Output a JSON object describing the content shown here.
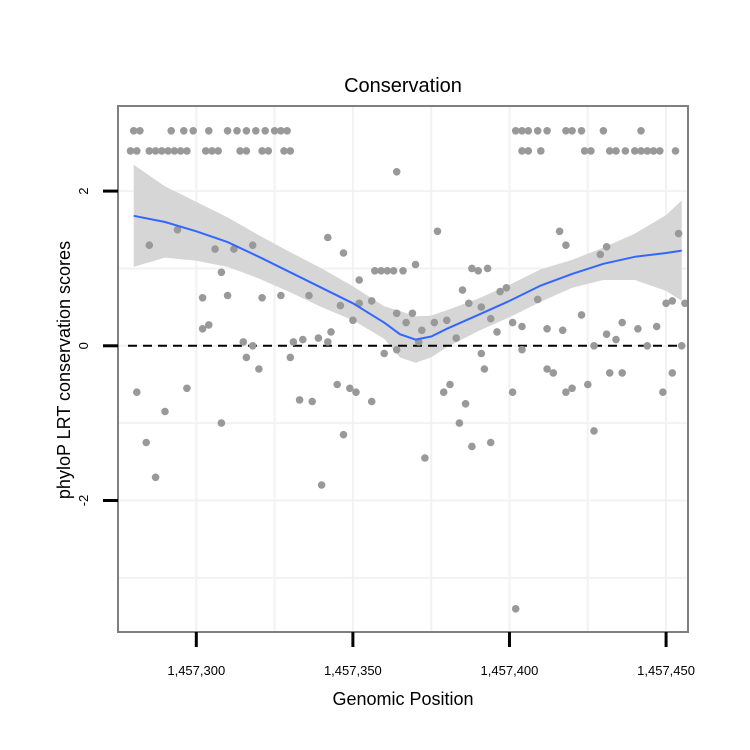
{
  "chart_data": {
    "type": "scatter",
    "title": "Conservation",
    "xlabel": "Genomic Position",
    "ylabel": "phyloP LRT conservation scores",
    "xlim": [
      1457275,
      1457457
    ],
    "ylim": [
      -3.7,
      3.1
    ],
    "x_ticks": [
      1457300,
      1457350,
      1457400,
      1457450
    ],
    "x_tick_labels": [
      "1,457,300",
      "1,457,350",
      "1,457,400",
      "1,457,450"
    ],
    "y_ticks": [
      -2,
      0,
      2
    ],
    "y_tick_labels": [
      "-2",
      "0",
      "2"
    ],
    "reference_line": 0,
    "colors": {
      "points": "#999999",
      "smooth": "#3366ff",
      "ribbon": "#d6d6d6",
      "panel_border": "#7f7f7f",
      "grid": "#f2f2f2"
    },
    "points": [
      [
        1457280,
        2.78
      ],
      [
        1457282,
        2.78
      ],
      [
        1457292,
        2.78
      ],
      [
        1457296,
        2.78
      ],
      [
        1457299,
        2.78
      ],
      [
        1457304,
        2.78
      ],
      [
        1457310,
        2.78
      ],
      [
        1457313,
        2.78
      ],
      [
        1457316,
        2.78
      ],
      [
        1457319,
        2.78
      ],
      [
        1457322,
        2.78
      ],
      [
        1457325,
        2.78
      ],
      [
        1457327,
        2.78
      ],
      [
        1457329,
        2.78
      ],
      [
        1457402,
        2.78
      ],
      [
        1457404,
        2.78
      ],
      [
        1457406,
        2.78
      ],
      [
        1457409,
        2.78
      ],
      [
        1457412,
        2.78
      ],
      [
        1457418,
        2.78
      ],
      [
        1457420,
        2.78
      ],
      [
        1457423,
        2.78
      ],
      [
        1457430,
        2.78
      ],
      [
        1457442,
        2.78
      ],
      [
        1457279,
        2.52
      ],
      [
        1457281,
        2.52
      ],
      [
        1457285,
        2.52
      ],
      [
        1457287,
        2.52
      ],
      [
        1457289,
        2.52
      ],
      [
        1457291,
        2.52
      ],
      [
        1457293,
        2.52
      ],
      [
        1457295,
        2.52
      ],
      [
        1457297,
        2.52
      ],
      [
        1457303,
        2.52
      ],
      [
        1457305,
        2.52
      ],
      [
        1457307,
        2.52
      ],
      [
        1457314,
        2.52
      ],
      [
        1457316,
        2.52
      ],
      [
        1457321,
        2.52
      ],
      [
        1457323,
        2.52
      ],
      [
        1457328,
        2.52
      ],
      [
        1457330,
        2.52
      ],
      [
        1457404,
        2.52
      ],
      [
        1457406,
        2.52
      ],
      [
        1457410,
        2.52
      ],
      [
        1457424,
        2.52
      ],
      [
        1457426,
        2.52
      ],
      [
        1457432,
        2.52
      ],
      [
        1457434,
        2.52
      ],
      [
        1457437,
        2.52
      ],
      [
        1457440,
        2.52
      ],
      [
        1457442,
        2.52
      ],
      [
        1457444,
        2.52
      ],
      [
        1457446,
        2.52
      ],
      [
        1457448,
        2.52
      ],
      [
        1457453,
        2.52
      ],
      [
        1457364,
        2.25
      ],
      [
        1457285,
        1.3
      ],
      [
        1457294,
        1.5
      ],
      [
        1457306,
        1.25
      ],
      [
        1457312,
        1.25
      ],
      [
        1457318,
        1.3
      ],
      [
        1457342,
        1.4
      ],
      [
        1457347,
        1.2
      ],
      [
        1457352,
        0.85
      ],
      [
        1457357,
        0.97
      ],
      [
        1457359,
        0.97
      ],
      [
        1457361,
        0.97
      ],
      [
        1457363,
        0.97
      ],
      [
        1457366,
        0.97
      ],
      [
        1457370,
        1.05
      ],
      [
        1457377,
        1.48
      ],
      [
        1457388,
        1.0
      ],
      [
        1457390,
        0.97
      ],
      [
        1457393,
        1.0
      ],
      [
        1457397,
        0.7
      ],
      [
        1457416,
        1.48
      ],
      [
        1457418,
        1.3
      ],
      [
        1457429,
        1.18
      ],
      [
        1457431,
        1.28
      ],
      [
        1457454,
        1.45
      ],
      [
        1457302,
        0.62
      ],
      [
        1457304,
        0.27
      ],
      [
        1457302,
        0.22
      ],
      [
        1457308,
        0.95
      ],
      [
        1457310,
        0.65
      ],
      [
        1457318,
        0.0
      ],
      [
        1457321,
        0.62
      ],
      [
        1457327,
        0.65
      ],
      [
        1457331,
        0.05
      ],
      [
        1457334,
        0.08
      ],
      [
        1457336,
        0.65
      ],
      [
        1457339,
        0.1
      ],
      [
        1457343,
        0.18
      ],
      [
        1457346,
        0.52
      ],
      [
        1457350,
        0.33
      ],
      [
        1457352,
        0.55
      ],
      [
        1457356,
        0.58
      ],
      [
        1457364,
        0.42
      ],
      [
        1457367,
        0.3
      ],
      [
        1457369,
        0.42
      ],
      [
        1457372,
        0.2
      ],
      [
        1457376,
        0.3
      ],
      [
        1457380,
        0.33
      ],
      [
        1457383,
        0.1
      ],
      [
        1457385,
        0.72
      ],
      [
        1457387,
        0.55
      ],
      [
        1457391,
        0.5
      ],
      [
        1457394,
        0.35
      ],
      [
        1457396,
        0.18
      ],
      [
        1457399,
        0.75
      ],
      [
        1457401,
        0.3
      ],
      [
        1457404,
        0.25
      ],
      [
        1457409,
        0.6
      ],
      [
        1457412,
        0.22
      ],
      [
        1457417,
        0.2
      ],
      [
        1457423,
        0.4
      ],
      [
        1457427,
        0.0
      ],
      [
        1457431,
        0.15
      ],
      [
        1457434,
        0.08
      ],
      [
        1457436,
        0.3
      ],
      [
        1457441,
        0.22
      ],
      [
        1457444,
        0.0
      ],
      [
        1457447,
        0.25
      ],
      [
        1457450,
        0.55
      ],
      [
        1457452,
        0.58
      ],
      [
        1457455,
        0.0
      ],
      [
        1457456,
        0.55
      ],
      [
        1457281,
        -0.6
      ],
      [
        1457284,
        -1.25
      ],
      [
        1457287,
        -1.7
      ],
      [
        1457290,
        -0.85
      ],
      [
        1457297,
        -0.55
      ],
      [
        1457308,
        -1.0
      ],
      [
        1457315,
        0.05
      ],
      [
        1457320,
        -0.3
      ],
      [
        1457330,
        -0.15
      ],
      [
        1457333,
        -0.7
      ],
      [
        1457337,
        -0.72
      ],
      [
        1457340,
        -1.8
      ],
      [
        1457342,
        0.05
      ],
      [
        1457345,
        -0.5
      ],
      [
        1457347,
        -1.15
      ],
      [
        1457349,
        -0.55
      ],
      [
        1457351,
        -0.6
      ],
      [
        1457356,
        -0.72
      ],
      [
        1457360,
        -0.1
      ],
      [
        1457364,
        -0.05
      ],
      [
        1457371,
        0.05
      ],
      [
        1457373,
        -1.45
      ],
      [
        1457379,
        -0.6
      ],
      [
        1457381,
        -0.5
      ],
      [
        1457384,
        -1.0
      ],
      [
        1457386,
        -0.75
      ],
      [
        1457388,
        -1.3
      ],
      [
        1457391,
        -0.1
      ],
      [
        1457392,
        -0.3
      ],
      [
        1457394,
        -1.25
      ],
      [
        1457401,
        -0.6
      ],
      [
        1457402,
        -3.4
      ],
      [
        1457404,
        -0.05
      ],
      [
        1457412,
        -0.3
      ],
      [
        1457414,
        -0.35
      ],
      [
        1457418,
        -0.6
      ],
      [
        1457420,
        -0.55
      ],
      [
        1457425,
        -0.5
      ],
      [
        1457427,
        -1.1
      ],
      [
        1457432,
        -0.35
      ],
      [
        1457436,
        -0.35
      ],
      [
        1457449,
        -0.6
      ],
      [
        1457452,
        -0.35
      ],
      [
        1457316,
        -0.15
      ]
    ],
    "smooth": {
      "x": [
        1457280,
        1457290,
        1457300,
        1457310,
        1457320,
        1457330,
        1457340,
        1457350,
        1457360,
        1457365,
        1457370,
        1457375,
        1457380,
        1457390,
        1457400,
        1457410,
        1457420,
        1457430,
        1457440,
        1457450,
        1457455
      ],
      "y": [
        1.68,
        1.6,
        1.48,
        1.34,
        1.15,
        0.95,
        0.75,
        0.55,
        0.3,
        0.15,
        0.08,
        0.12,
        0.22,
        0.4,
        0.58,
        0.78,
        0.93,
        1.06,
        1.15,
        1.2,
        1.23
      ],
      "lower": [
        1.02,
        1.14,
        1.1,
        1.02,
        0.87,
        0.69,
        0.5,
        0.33,
        0.09,
        -0.15,
        -0.22,
        -0.15,
        -0.02,
        0.19,
        0.37,
        0.57,
        0.75,
        0.85,
        0.85,
        0.71,
        0.58
      ],
      "upper": [
        2.34,
        2.06,
        1.86,
        1.66,
        1.43,
        1.21,
        1.0,
        0.77,
        0.51,
        0.45,
        0.38,
        0.39,
        0.46,
        0.61,
        0.79,
        0.99,
        1.11,
        1.27,
        1.45,
        1.69,
        1.88
      ]
    }
  }
}
